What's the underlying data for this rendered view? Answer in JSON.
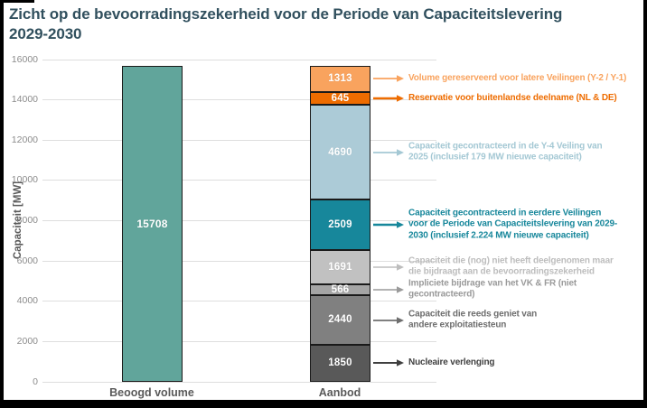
{
  "page": {
    "title_line1": "Zicht op de bevoorradingszekerheid voor de Periode van Capaciteitslevering",
    "title_line2": "2029-2030",
    "title_color": "#31505E"
  },
  "colors": {
    "background": "#FFFFFF",
    "frame": "#000000",
    "gridline": "#DEDEDE",
    "tick_label": "#8C8C8C",
    "axis_title": "#595959",
    "category_label": "#595959",
    "bar_border": "#1A1A1A",
    "value_label": "#FFFFFF"
  },
  "chart_data": {
    "type": "bar",
    "subtype": "stacked-comparison",
    "title": "Zicht op de bevoorradingszekerheid voor de Periode van Capaciteitslevering 2029-2030",
    "xlabel": "",
    "ylabel": "Capaciteit [MW]",
    "ylim": [
      0,
      16000
    ],
    "ytick_step": 2000,
    "yticks": [
      0,
      2000,
      4000,
      6000,
      8000,
      10000,
      12000,
      14000,
      16000
    ],
    "grid": "horizontal",
    "legend": "none (arrow annotations at right)",
    "categories": [
      "Beoogd volume",
      "Aanbod"
    ],
    "beoogd_volume": {
      "value": 15708,
      "color": "#61A59B"
    },
    "aanbod_total": 15704,
    "aanbod_segments_top_to_bottom": [
      {
        "value": 1313,
        "color": "#F9A35E",
        "annotation_color": "#F9A35E",
        "arrow_weight": 1.8,
        "annotation_lines": [
          "Volume gereserveerd voor latere Veilingen (Y-2 / Y-1)"
        ]
      },
      {
        "value": 645,
        "color": "#EE6C00",
        "annotation_color": "#EE6C00",
        "arrow_weight": 2.6,
        "annotation_lines": [
          "Reservatie voor buitenlandse deelname (NL & DE)"
        ]
      },
      {
        "value": 4690,
        "color": "#ACCBD7",
        "annotation_color": "#A4C8D4",
        "arrow_weight": 1.8,
        "annotation_lines": [
          "Capaciteit gecontracteerd in de Y-4 Veiling van",
          "2025 (inclusief 179 MW nieuwe capaciteit)"
        ]
      },
      {
        "value": 2509,
        "color": "#17879B",
        "annotation_color": "#17879B",
        "arrow_weight": 2.6,
        "annotation_lines": [
          "Capaciteit gecontracteerd in eerdere Veilingen",
          "voor de Periode van Capaciteitslevering van 2029-",
          "2030 (inclusief 2.224 MW nieuwe capaciteit)"
        ]
      },
      {
        "value": 1691,
        "color": "#C1C1C1",
        "annotation_color": "#BDBDBD",
        "arrow_weight": 1.6,
        "annotation_lines": [
          "Capaciteit die (nog) niet heeft deelgenomen maar",
          "die bijdraagt aan de bevoorradingszekerheid"
        ]
      },
      {
        "value": 566,
        "color": "#A5A5A5",
        "annotation_color": "#9A9A9A",
        "arrow_weight": 1.6,
        "annotation_lines": [
          "Impliciete bijdrage van het VK & FR (niet",
          "gecontracteerd)"
        ]
      },
      {
        "value": 2440,
        "color": "#808080",
        "annotation_color": "#6E6E6E",
        "arrow_weight": 1.8,
        "annotation_lines": [
          "Capaciteit die reeds geniet van",
          "andere exploitatiesteun"
        ]
      },
      {
        "value": 1850,
        "color": "#595959",
        "annotation_color": "#3F3F3F",
        "arrow_weight": 2.0,
        "annotation_lines": [
          "Nucleaire verlenging"
        ]
      }
    ]
  }
}
